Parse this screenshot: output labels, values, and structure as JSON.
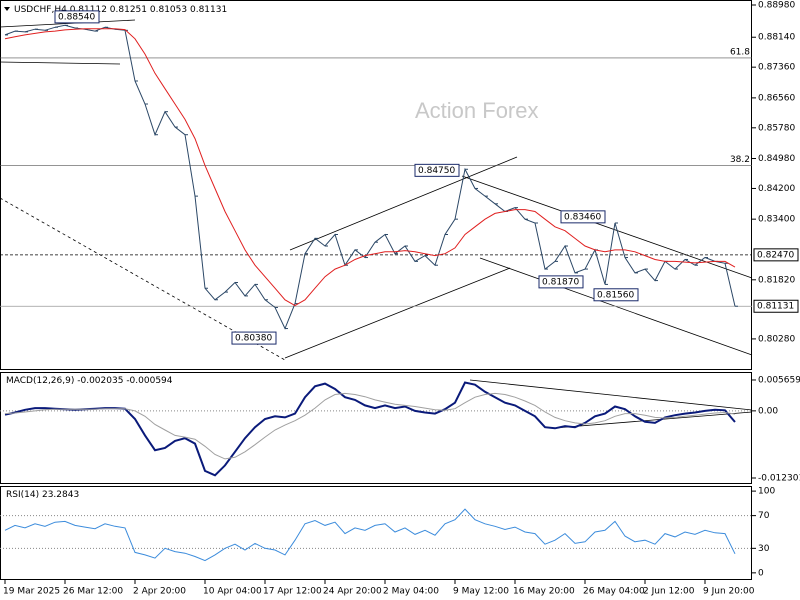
{
  "chart_data": [
    {
      "type": "line",
      "title": "USDCHF,H4",
      "header_values": [
        0.81112,
        0.81251,
        0.81053,
        0.81131
      ],
      "watermark": "Action Forex",
      "categories": [
        "19 Mar 2025",
        null,
        null,
        null,
        null,
        null,
        "26 Mar 12:00",
        null,
        null,
        null,
        null,
        null,
        null,
        "2 Apr 20:00",
        null,
        null,
        null,
        null,
        null,
        null,
        "10 Apr 04:00",
        null,
        null,
        null,
        null,
        null,
        "17 Apr 12:00",
        null,
        null,
        null,
        null,
        null,
        "24 Apr 20:00",
        null,
        null,
        null,
        null,
        null,
        "2 May 04:00",
        null,
        null,
        null,
        null,
        null,
        null,
        "9 May 12:00",
        null,
        null,
        null,
        null,
        null,
        "16 May 20:00",
        null,
        null,
        null,
        null,
        null,
        null,
        "26 May 04:00",
        null,
        null,
        null,
        null,
        null,
        "2 Jun 12:00",
        null,
        null,
        null,
        null,
        null,
        "9 Jun 20:00",
        null,
        null,
        null
      ],
      "series": [
        {
          "color": "#2b4766",
          "values": [
            0.882,
            0.883,
            0.8828,
            0.8835,
            0.8832,
            0.884,
            0.8845,
            0.8838,
            0.8835,
            0.883,
            0.884,
            0.8835,
            0.8832,
            0.87,
            0.864,
            0.856,
            0.862,
            0.858,
            0.856,
            0.84,
            0.816,
            0.813,
            0.815,
            0.8175,
            0.814,
            0.817,
            0.813,
            0.811,
            0.8055,
            0.812,
            0.825,
            0.829,
            0.827,
            0.83,
            0.822,
            0.826,
            0.824,
            0.828,
            0.83,
            0.825,
            0.827,
            0.823,
            0.8245,
            0.822,
            0.83,
            0.834,
            0.847,
            0.842,
            0.84,
            0.838,
            0.836,
            0.837,
            0.834,
            0.833,
            0.821,
            0.823,
            0.827,
            0.82,
            0.821,
            0.826,
            0.817,
            0.833,
            0.824,
            0.82,
            0.821,
            0.818,
            0.823,
            0.821,
            0.8235,
            0.822,
            0.824,
            0.823,
            0.8225,
            0.81131
          ]
        },
        {
          "color": "#e02020",
          "values": [
            0.881,
            0.8815,
            0.882,
            0.8824,
            0.8828,
            0.883,
            0.8833,
            0.8835,
            0.8836,
            0.8836,
            0.8836,
            0.8836,
            0.8834,
            0.881,
            0.877,
            0.872,
            0.868,
            0.864,
            0.86,
            0.855,
            0.848,
            0.842,
            0.836,
            0.831,
            0.826,
            0.822,
            0.819,
            0.816,
            0.813,
            0.8115,
            0.813,
            0.816,
            0.819,
            0.821,
            0.822,
            0.8235,
            0.8245,
            0.825,
            0.8255,
            0.8255,
            0.8258,
            0.8255,
            0.825,
            0.8245,
            0.825,
            0.8265,
            0.83,
            0.832,
            0.834,
            0.8355,
            0.836,
            0.8365,
            0.8365,
            0.836,
            0.834,
            0.832,
            0.831,
            0.829,
            0.827,
            0.826,
            0.8255,
            0.826,
            0.826,
            0.8255,
            0.8245,
            0.8235,
            0.823,
            0.823,
            0.8228,
            0.8226,
            0.8228,
            0.823,
            0.823,
            0.8215
          ]
        }
      ],
      "ylim": [
        0.7947,
        0.8911
      ],
      "yticks": [
        {
          "value": 0.8898,
          "label": "0.88980"
        },
        {
          "value": 0.8814,
          "label": "0.88140"
        },
        {
          "value": 0.8736,
          "label": "0.87360"
        },
        {
          "value": 0.8656,
          "label": "0.86560"
        },
        {
          "value": 0.8578,
          "label": "0.85780"
        },
        {
          "value": 0.8498,
          "label": "0.84980"
        },
        {
          "value": 0.842,
          "label": "0.84200"
        },
        {
          "value": 0.834,
          "label": "0.83400"
        },
        {
          "value": 0.8182,
          "label": "0.81820"
        },
        {
          "value": 0.8028,
          "label": "0.80280"
        }
      ],
      "levels": [
        {
          "value": 0.876,
          "label": "61.8"
        },
        {
          "value": 0.848,
          "label": "38.2"
        }
      ],
      "hlines": [
        {
          "value": 0.8247,
          "label": "0.82470",
          "style": "dashed"
        },
        {
          "value": 0.81131,
          "label": "0.81131",
          "style": "solid"
        }
      ],
      "annotations": [
        {
          "value": 0.8854,
          "label": "0.88540"
        },
        {
          "value": 0.8475,
          "label": "0.84750"
        },
        {
          "value": 0.8038,
          "label": "0.80380"
        },
        {
          "value": 0.8346,
          "label": "0.83460"
        },
        {
          "value": 0.8187,
          "label": "0.81870"
        },
        {
          "value": 0.8156,
          "label": "0.81560"
        }
      ]
    },
    {
      "type": "line",
      "title": "MACD(12,26,9)",
      "header_values": [
        -0.002035,
        -0.000594
      ],
      "series": [
        {
          "color": "#0a1a7a",
          "values": [
            -0.0007,
            -0.0003,
            0.0002,
            0.0005,
            0.0005,
            0.0004,
            0.0003,
            0.0002,
            0.0003,
            0.0004,
            0.0005,
            0.0005,
            0.0004,
            -0.0015,
            -0.0045,
            -0.0072,
            -0.0068,
            -0.0055,
            -0.005,
            -0.006,
            -0.011,
            -0.0118,
            -0.01,
            -0.0075,
            -0.005,
            -0.003,
            -0.0015,
            -0.001,
            -0.0012,
            -0.0005,
            0.0025,
            0.0045,
            0.005,
            0.004,
            0.0025,
            0.002,
            0.001,
            0.0005,
            0.001,
            0.0005,
            0.0008,
            0,
            -0.0003,
            -0.0005,
            0.0003,
            0.0015,
            0.0052,
            0.0048,
            0.0035,
            0.0025,
            0.0015,
            0.001,
            0,
            -0.001,
            -0.003,
            -0.0032,
            -0.0028,
            -0.003,
            -0.0022,
            -0.001,
            -0.0005,
            0.0008,
            0.0003,
            -0.001,
            -0.002,
            -0.0022,
            -0.0012,
            -0.0008,
            -0.0005,
            -0.0003,
            0,
            0.0002,
            0.0001,
            -0.002035
          ]
        },
        {
          "color": "#a0a0a0",
          "values": [
            -0.0005,
            -0.0004,
            -0.0002,
            0,
            0.0002,
            0.0003,
            0.0003,
            0.0003,
            0.0003,
            0.0003,
            0.0004,
            0.0004,
            0.0004,
            0,
            -0.001,
            -0.0025,
            -0.0035,
            -0.0045,
            -0.0048,
            -0.0052,
            -0.0065,
            -0.008,
            -0.0088,
            -0.0085,
            -0.0075,
            -0.0062,
            -0.0048,
            -0.0035,
            -0.0026,
            -0.0018,
            -0.0008,
            0.0005,
            0.002,
            0.003,
            0.0032,
            0.003,
            0.0026,
            0.002,
            0.0016,
            0.0012,
            0.001,
            0.0008,
            0.0005,
            0.0002,
            0.0001,
            0.0004,
            0.0015,
            0.0025,
            0.003,
            0.0032,
            0.003,
            0.0025,
            0.0018,
            0.001,
            -0.0002,
            -0.0012,
            -0.0018,
            -0.0022,
            -0.0024,
            -0.0022,
            -0.0018,
            -0.001,
            -0.0005,
            -0.0005,
            -0.0008,
            -0.0012,
            -0.0013,
            -0.0012,
            -0.001,
            -0.0008,
            -0.0006,
            -0.0004,
            -0.0003,
            -0.000594
          ]
        }
      ],
      "ylim": [
        -0.0134,
        0.00712
      ],
      "yticks": [
        0.005659,
        {
          "value": 0,
          "label": "0.00"
        },
        -0.012301
      ]
    },
    {
      "type": "line",
      "title": "RSI(14)",
      "header_values": [
        23.2843
      ],
      "series": [
        {
          "color": "#3c8cdc",
          "values": [
            52,
            58,
            55,
            60,
            57,
            62,
            63,
            58,
            56,
            54,
            60,
            57,
            55,
            25,
            22,
            18,
            30,
            26,
            24,
            20,
            15,
            22,
            30,
            35,
            28,
            36,
            30,
            28,
            22,
            40,
            60,
            64,
            58,
            62,
            48,
            55,
            52,
            58,
            60,
            50,
            55,
            47,
            52,
            46,
            60,
            65,
            78,
            65,
            60,
            57,
            53,
            56,
            50,
            48,
            35,
            40,
            48,
            36,
            38,
            50,
            52,
            63,
            45,
            38,
            40,
            35,
            48,
            44,
            50,
            47,
            52,
            49,
            48,
            23.2843
          ]
        }
      ],
      "ylim": [
        -8.75,
        106.25
      ],
      "yticks": [
        100,
        70,
        30,
        0
      ],
      "levels": [
        70,
        30
      ]
    }
  ]
}
